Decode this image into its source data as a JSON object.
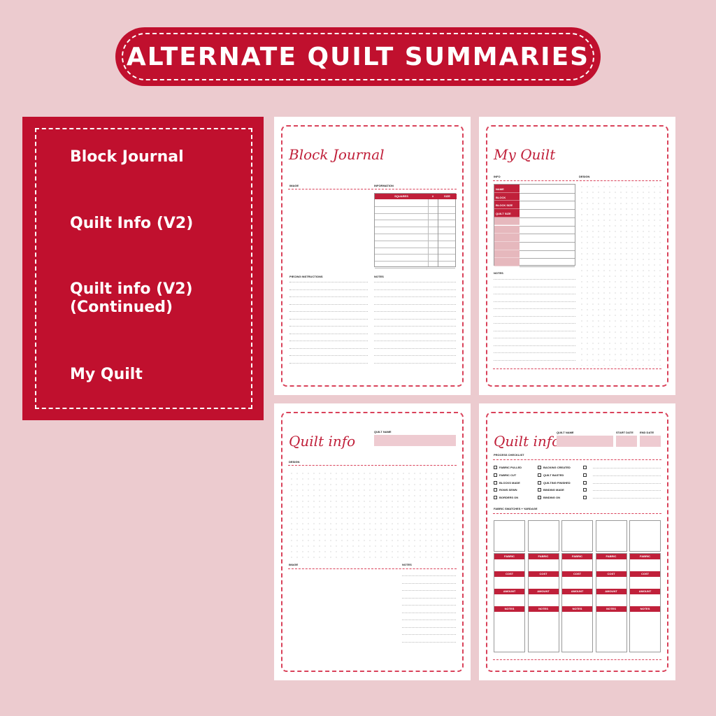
{
  "title": "ALTERNATE QUILT SUMMARIES",
  "colors": {
    "background": "#eccbcf",
    "accent": "#c0102e",
    "light_pink": "#eecbd1"
  },
  "panel": {
    "items": [
      "Block Journal",
      "Quilt Info (V2)",
      "Quilt info (V2)",
      "(Continued)",
      "My Quilt"
    ]
  },
  "block_journal": {
    "title": "Block Journal",
    "image_label": "IMAGE",
    "information_label": "INFORMATION",
    "columns": [
      "SQUARES",
      "#",
      "SIZE"
    ],
    "piecing_label": "PIECING INSTRUCTIONS",
    "notes_label": "NOTES"
  },
  "my_quilt": {
    "title": "My Quilt",
    "info_label": "INFO",
    "design_label": "DESIGN",
    "rows": [
      "NAME",
      "BLOCK",
      "BLOCK SIZE",
      "QUILT SIZE"
    ],
    "notes_label": "NOTES"
  },
  "quilt_info": {
    "title": "Quilt info",
    "quilt_name_label": "QUILT NAME",
    "design_label": "DESIGN",
    "image_label": "IMAGE",
    "notes_label": "NOTES"
  },
  "quilt_info_v2": {
    "title": "Quilt info",
    "quilt_name_label": "QUILT NAME",
    "start_date_label": "START DATE",
    "end_date_label": "END DATE",
    "checklist_label": "PROCESS CHECKLIST",
    "checklist_col1": [
      "FABRIC PULLED",
      "FABRIC CUT",
      "BLOCKS MADE",
      "ROWS SEWN",
      "BORDERS ON"
    ],
    "checklist_col2": [
      "BACKING CREATED",
      "QUILT BASTED",
      "QUILTING FINISHED",
      "BINDING MADE",
      "BINDING ON"
    ],
    "swatches_label": "FABRIC SWATCHES + YARDAGE",
    "swatch_fields": [
      "FABRIC",
      "COST",
      "AMOUNT",
      "NOTES"
    ]
  }
}
